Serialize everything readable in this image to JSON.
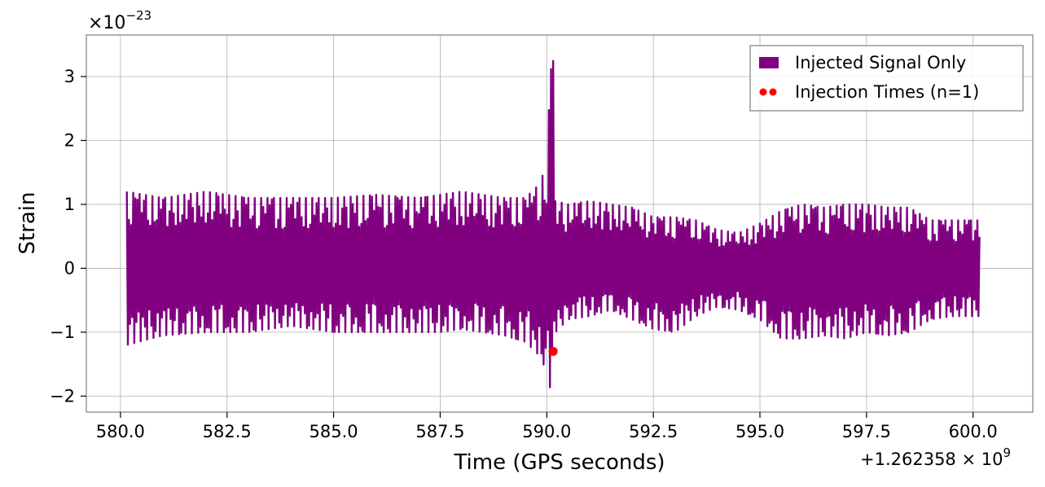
{
  "chart_data": {
    "type": "line",
    "xlabel": "Time (GPS seconds)",
    "ylabel": "Strain",
    "x_offset_label": "+1.262358 × 10",
    "x_offset_exp": "9",
    "y_multiplier_label": "×10",
    "y_multiplier_exp": "−23",
    "xlim": [
      579.2,
      601.4
    ],
    "ylim": [
      -2.25,
      3.65
    ],
    "x_ticks": [
      580.0,
      582.5,
      585.0,
      587.5,
      590.0,
      592.5,
      595.0,
      597.5,
      600.0
    ],
    "x_tick_labels": [
      "580.0",
      "582.5",
      "585.0",
      "587.5",
      "590.0",
      "592.5",
      "595.0",
      "597.5",
      "600.0"
    ],
    "y_ticks": [
      -2,
      -1,
      0,
      1,
      2,
      3
    ],
    "y_tick_labels": [
      "−2",
      "−1",
      "0",
      "1",
      "2",
      "3"
    ],
    "grid": true,
    "legend_position": "top-right",
    "series": [
      {
        "name": "Injected Signal Only",
        "kind": "line",
        "color": "#800080",
        "x_range": [
          580.15,
          600.15
        ],
        "envelope": {
          "t": [
            580.15,
            581.0,
            582.0,
            583.0,
            584.0,
            585.0,
            586.0,
            587.0,
            587.5,
            588.0,
            588.5,
            589.0,
            589.5,
            589.8,
            590.0,
            590.1,
            590.15,
            590.2,
            590.5,
            591.0,
            591.5,
            592.0,
            592.5,
            593.0,
            593.5,
            594.0,
            594.5,
            595.0,
            595.5,
            596.0,
            596.5,
            597.0,
            597.5,
            598.0,
            598.5,
            599.0,
            599.5,
            600.15
          ],
          "upper": [
            1.2,
            1.1,
            1.2,
            1.1,
            1.1,
            1.1,
            1.15,
            1.1,
            1.15,
            1.2,
            1.15,
            1.1,
            1.1,
            1.3,
            1.6,
            3.35,
            3.35,
            1.05,
            1.0,
            1.05,
            1.0,
            0.95,
            0.8,
            0.8,
            0.75,
            0.6,
            0.55,
            0.7,
            0.9,
            1.0,
            0.95,
            1.0,
            1.0,
            0.95,
            0.95,
            0.75,
            0.75,
            0.75
          ],
          "lower": [
            -1.2,
            -1.05,
            -1.0,
            -1.0,
            -0.9,
            -1.0,
            -1.0,
            -1.0,
            -1.0,
            -0.95,
            -1.0,
            -1.05,
            -1.15,
            -1.35,
            -1.6,
            -1.95,
            -1.95,
            -1.0,
            -0.8,
            -0.75,
            -0.65,
            -0.8,
            -0.95,
            -1.0,
            -0.75,
            -0.6,
            -0.65,
            -0.8,
            -1.1,
            -1.1,
            -1.05,
            -1.1,
            -1.0,
            -1.05,
            -1.0,
            -0.8,
            -0.75,
            -0.75
          ]
        }
      },
      {
        "name": "Injection Times (n=1)",
        "kind": "scatter",
        "color": "#ff0000",
        "points": [
          {
            "x": 590.15,
            "y": -1.3
          }
        ]
      }
    ]
  }
}
